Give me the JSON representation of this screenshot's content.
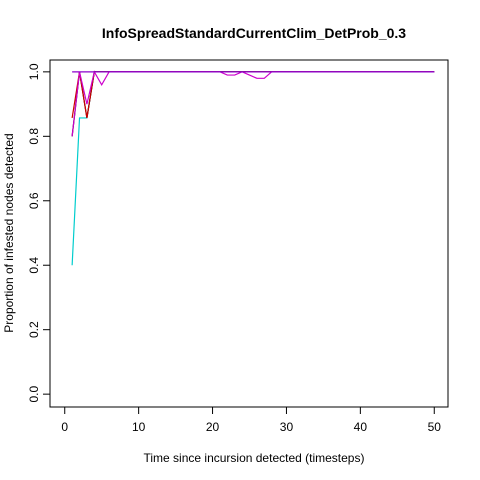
{
  "chart_data": {
    "type": "line",
    "title": "InfoSpreadStandardCurrentClim_DetProb_0.3",
    "xlabel": "Time since incursion detected (timesteps)",
    "ylabel": "Proportion of infested nodes detected",
    "xlim": [
      0,
      50
    ],
    "ylim": [
      0,
      1
    ],
    "x_ticks": [
      0,
      10,
      20,
      30,
      40,
      50
    ],
    "y_ticks": [
      0.0,
      0.2,
      0.4,
      0.6,
      0.8,
      1.0
    ],
    "x_tick_labels": [
      "0",
      "10",
      "20",
      "30",
      "40",
      "50"
    ],
    "y_tick_labels": [
      "0.0",
      "0.2",
      "0.4",
      "0.6",
      "0.8",
      "1.0"
    ],
    "grid": false,
    "series": [
      {
        "color": "#00CDCD",
        "points": [
          [
            1,
            0.4
          ],
          [
            2,
            0.857
          ],
          [
            3,
            0.857
          ],
          [
            4,
            1.0
          ],
          [
            50,
            1.0
          ]
        ]
      },
      {
        "color": "#000000",
        "points": [
          [
            1,
            0.8
          ],
          [
            2,
            1.0
          ],
          [
            3,
            0.857
          ],
          [
            4,
            1.0
          ],
          [
            50,
            1.0
          ]
        ]
      },
      {
        "color": "#CD0000",
        "points": [
          [
            1,
            0.857
          ],
          [
            2,
            1.0
          ],
          [
            3,
            0.857
          ],
          [
            4,
            1.0
          ],
          [
            50,
            1.0
          ]
        ]
      },
      {
        "color": "#CD00CD",
        "points": [
          [
            1,
            0.8
          ],
          [
            2,
            1.0
          ],
          [
            3,
            0.9
          ],
          [
            4,
            1.0
          ],
          [
            5,
            0.96
          ],
          [
            6,
            1.0
          ],
          [
            21,
            1.0
          ],
          [
            22,
            0.99
          ],
          [
            23,
            0.99
          ],
          [
            24,
            1.0
          ],
          [
            25,
            0.99
          ],
          [
            26,
            0.98
          ],
          [
            27,
            0.98
          ],
          [
            28,
            1.0
          ],
          [
            50,
            1.0
          ]
        ]
      },
      {
        "color": "#8B00CD",
        "points": [
          [
            1,
            1.0
          ],
          [
            50,
            1.0
          ]
        ]
      }
    ]
  }
}
